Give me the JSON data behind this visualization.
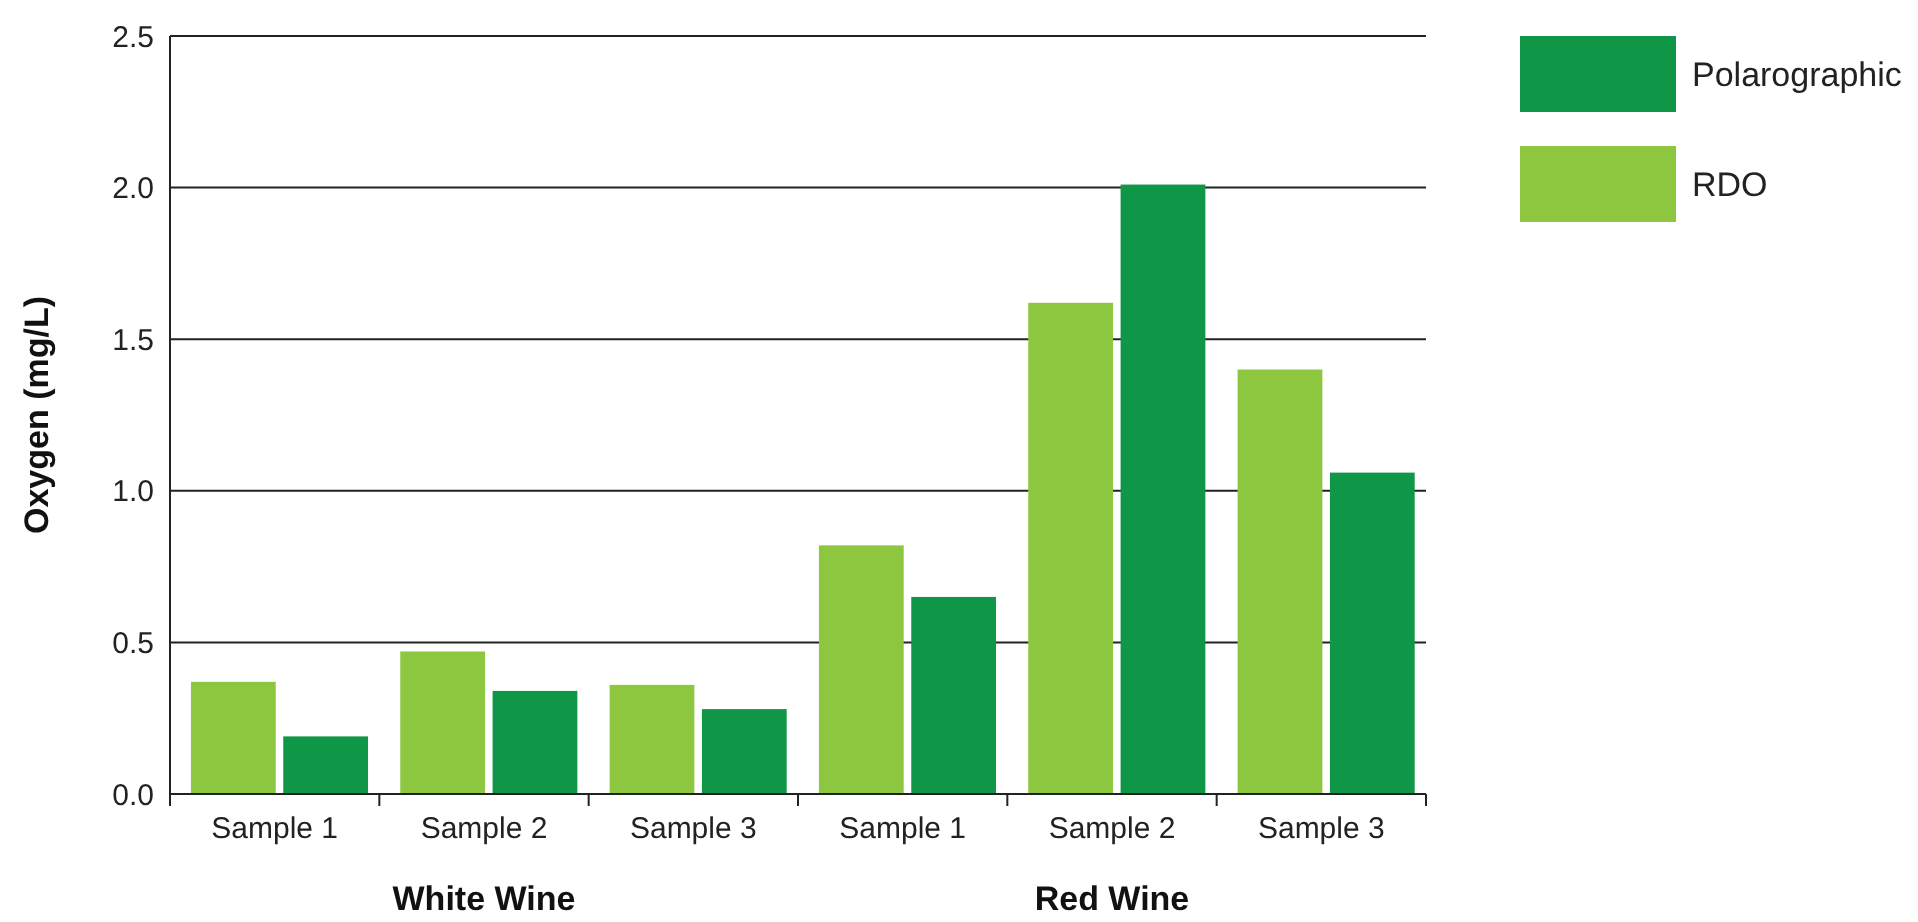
{
  "chart_data": {
    "type": "bar",
    "ylabel": "Oxygen (mg/L)",
    "categories": [
      "Sample 1",
      "Sample 2",
      "Sample 3",
      "Sample 1",
      "Sample 2",
      "Sample 3"
    ],
    "series": [
      {
        "name": "RDO",
        "color": "#8dc63f",
        "values": [
          0.37,
          0.47,
          0.36,
          0.82,
          1.62,
          1.4
        ]
      },
      {
        "name": "Polarographic",
        "color": "#0f9646",
        "values": [
          0.19,
          0.34,
          0.28,
          0.65,
          2.01,
          1.06
        ]
      }
    ],
    "ylim": [
      0,
      2.5
    ],
    "yticks": [
      {
        "value": 0,
        "label": "0.0"
      },
      {
        "value": 0.5,
        "label": "0.5"
      },
      {
        "value": 1,
        "label": "1.0"
      },
      {
        "value": 1.5,
        "label": "1.5"
      },
      {
        "value": 2,
        "label": "2.0"
      },
      {
        "value": 2.5,
        "label": "2.5"
      }
    ],
    "grid": "y",
    "legend": "top right",
    "annotations": [
      "White Wine",
      "Red Wine"
    ]
  }
}
